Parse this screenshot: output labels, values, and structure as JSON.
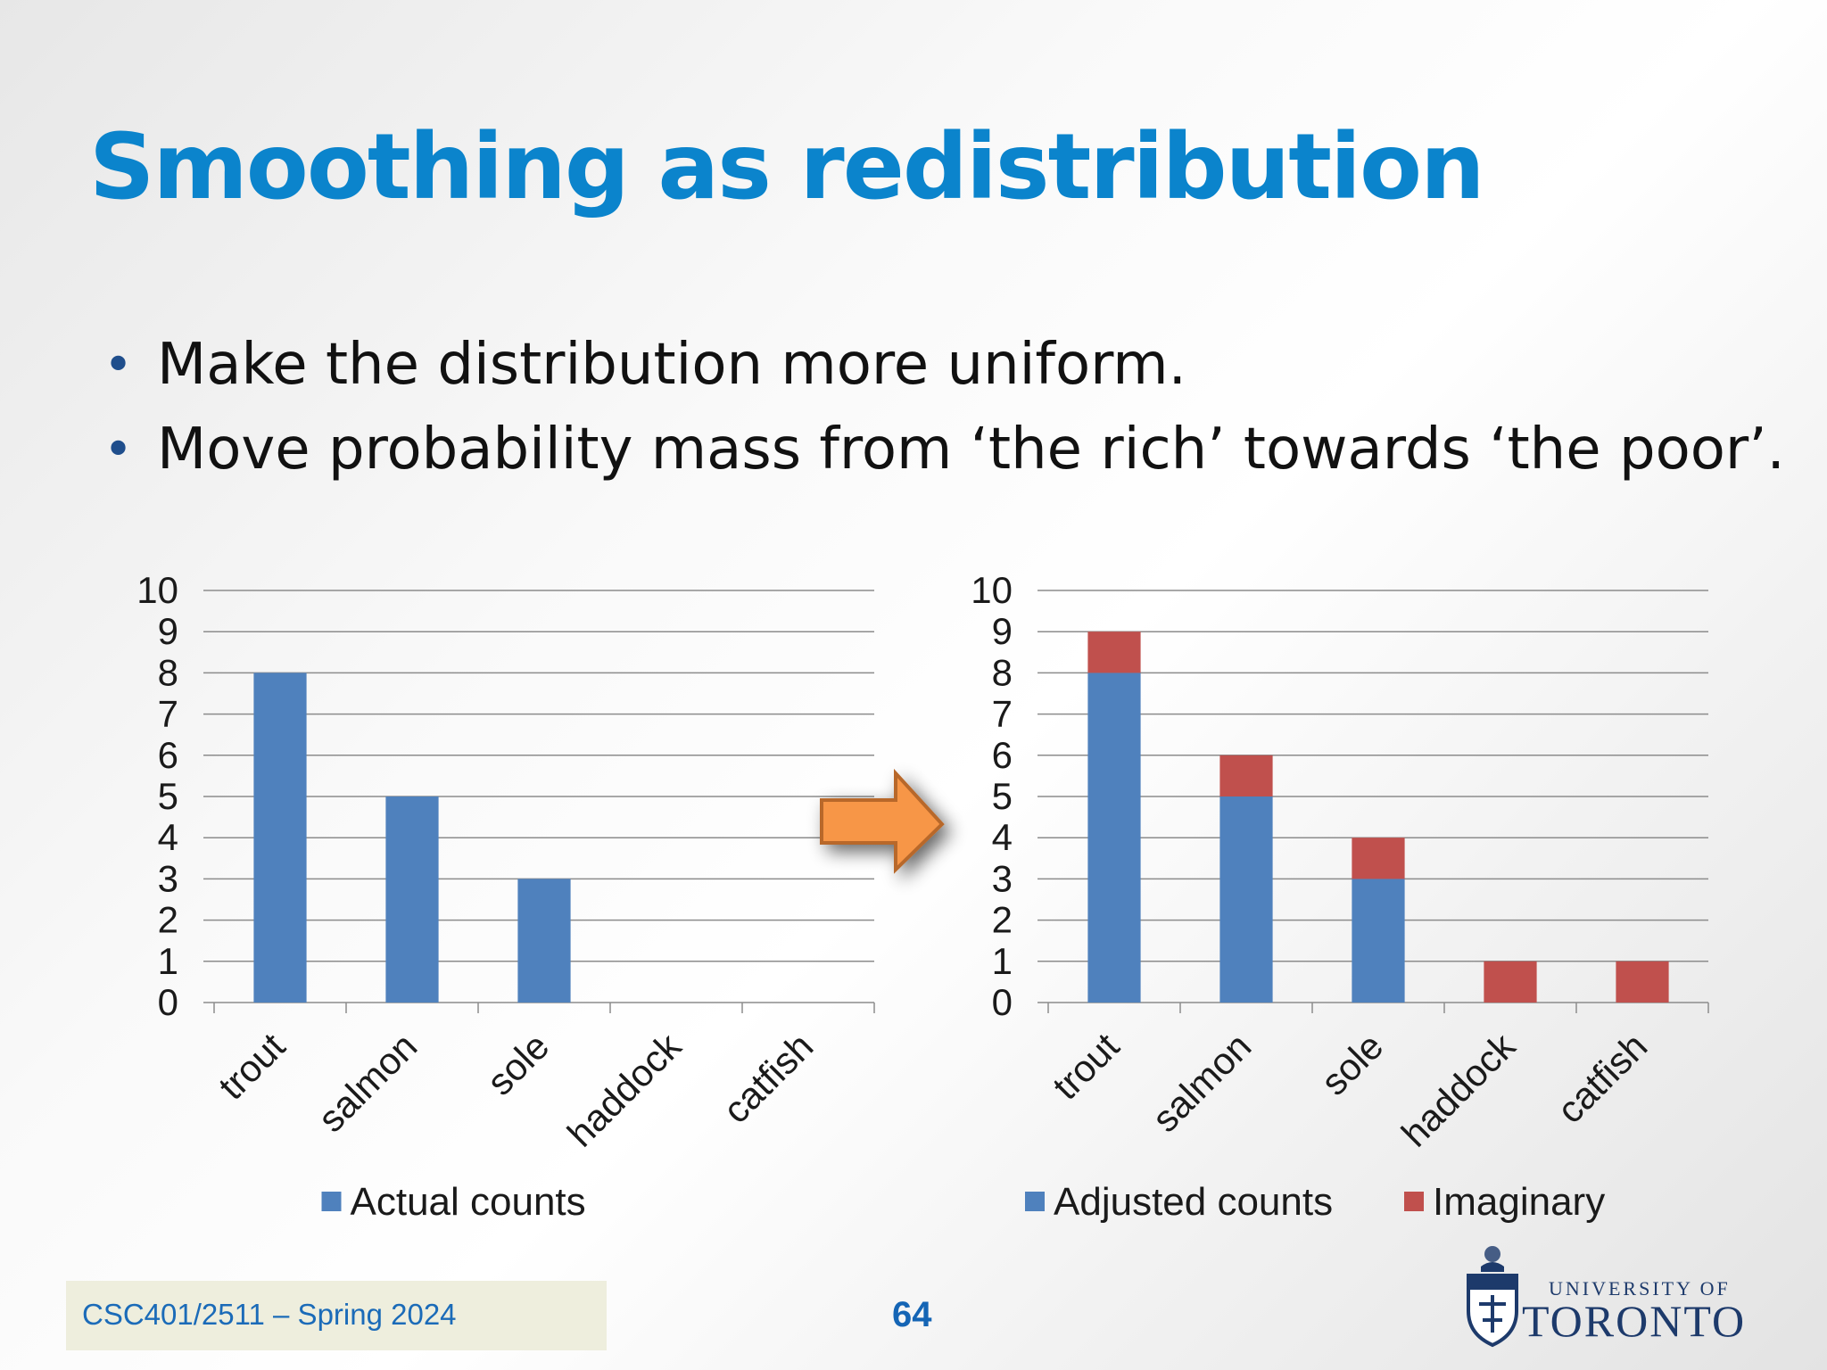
{
  "slide": {
    "title": "Smoothing as redistribution",
    "bullets": [
      "Make the distribution more uniform.",
      "Move probability mass from ‘the rich’ towards ‘the poor’."
    ]
  },
  "footer": {
    "course": "CSC401/2511 – Spring 2024",
    "page": "64"
  },
  "logo": {
    "line1": "UNIVERSITY OF",
    "line2": "TORONTO"
  },
  "colors": {
    "title": "#0b84cc",
    "series_blue": "#4f81bd",
    "series_red": "#c0504d",
    "arrow": "#f79646"
  },
  "chart_data": [
    {
      "type": "bar",
      "categories": [
        "trout",
        "salmon",
        "sole",
        "haddock",
        "catfish"
      ],
      "series": [
        {
          "name": "Actual counts",
          "values": [
            8,
            5,
            3,
            0,
            0
          ],
          "color": "#4f81bd"
        }
      ],
      "ylim": [
        0,
        10
      ],
      "yticks": [
        0,
        1,
        2,
        3,
        4,
        5,
        6,
        7,
        8,
        9,
        10
      ],
      "grid": true,
      "legend": "bottom"
    },
    {
      "type": "bar",
      "stacked": true,
      "categories": [
        "trout",
        "salmon",
        "sole",
        "haddock",
        "catfish"
      ],
      "series": [
        {
          "name": "Adjusted counts",
          "values": [
            8,
            5,
            3,
            0,
            0
          ],
          "color": "#4f81bd"
        },
        {
          "name": "Imaginary",
          "values": [
            1,
            1,
            1,
            1,
            1
          ],
          "color": "#c0504d"
        }
      ],
      "ylim": [
        0,
        10
      ],
      "yticks": [
        0,
        1,
        2,
        3,
        4,
        5,
        6,
        7,
        8,
        9,
        10
      ],
      "grid": true,
      "legend": "bottom"
    }
  ]
}
